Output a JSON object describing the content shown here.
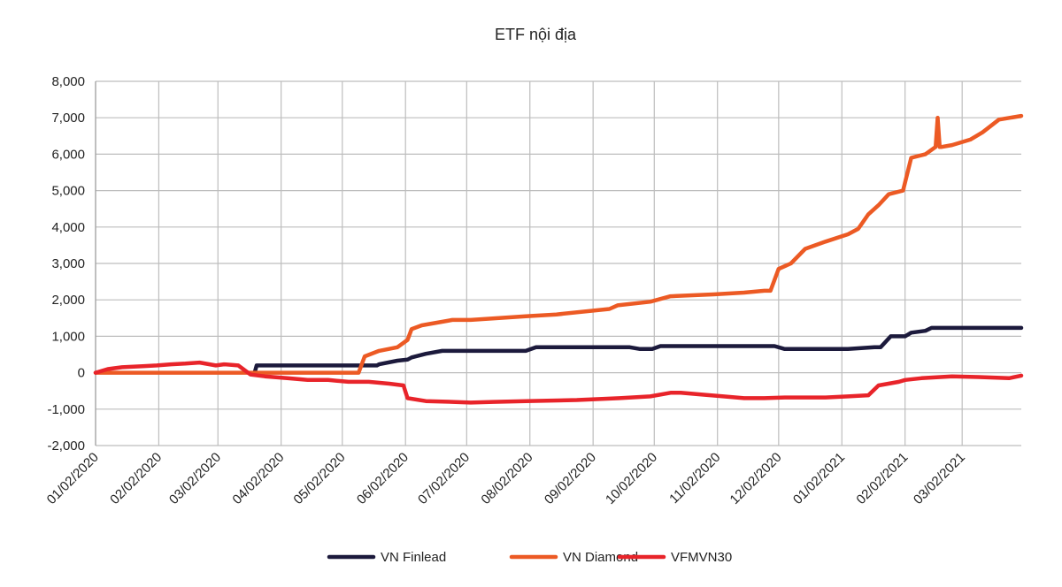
{
  "chart_data": {
    "type": "line",
    "title": "ETF nội địa",
    "xlabel": "",
    "ylabel": "",
    "ylim": [
      -2000,
      8000
    ],
    "yticks": [
      -2000,
      -1000,
      0,
      1000,
      2000,
      3000,
      4000,
      5000,
      6000,
      7000,
      8000
    ],
    "ytick_labels": [
      "-2,000",
      "-1,000",
      "0",
      "1,000",
      "2,000",
      "3,000",
      "4,000",
      "5,000",
      "6,000",
      "7,000",
      "8,000"
    ],
    "xlim": [
      "2020-01-02",
      "2021-03-31"
    ],
    "xticks": [
      "2020-01-02",
      "2020-02-02",
      "2020-03-02",
      "2020-04-02",
      "2020-05-02",
      "2020-06-02",
      "2020-07-02",
      "2020-08-02",
      "2020-09-02",
      "2020-10-02",
      "2020-11-02",
      "2020-12-02",
      "2021-01-02",
      "2021-02-02",
      "2021-03-02"
    ],
    "xtick_labels": [
      "01/02/2020",
      "02/02/2020",
      "03/02/2020",
      "04/02/2020",
      "05/02/2020",
      "06/02/2020",
      "07/02/2020",
      "08/02/2020",
      "09/02/2020",
      "10/02/2020",
      "11/02/2020",
      "12/02/2020",
      "01/02/2021",
      "02/02/2021",
      "03/02/2021"
    ],
    "grid": true,
    "legend_position": "bottom",
    "series": [
      {
        "name": "VN Finlead",
        "color": "#1c1a3c",
        "x": [
          "2020-03-20",
          "2020-03-21",
          "2020-05-19",
          "2020-05-20",
          "2020-05-29",
          "2020-06-03",
          "2020-06-05",
          "2020-06-12",
          "2020-06-20",
          "2020-07-31",
          "2020-08-05",
          "2020-09-20",
          "2020-09-25",
          "2020-10-01",
          "2020-10-05",
          "2020-11-30",
          "2020-12-05",
          "2021-01-05",
          "2021-01-18",
          "2021-01-21",
          "2021-01-26",
          "2021-02-02",
          "2021-02-05",
          "2021-02-12",
          "2021-02-15",
          "2021-03-31"
        ],
        "y": [
          0,
          200,
          200,
          230,
          330,
          360,
          420,
          520,
          600,
          600,
          700,
          700,
          650,
          650,
          730,
          730,
          650,
          650,
          700,
          700,
          1000,
          1000,
          1100,
          1150,
          1230,
          1230
        ]
      },
      {
        "name": "VN Diamond",
        "color": "#ec5a24",
        "x": [
          "2020-01-02",
          "2020-05-10",
          "2020-05-13",
          "2020-05-20",
          "2020-05-29",
          "2020-06-03",
          "2020-06-05",
          "2020-06-10",
          "2020-06-25",
          "2020-07-04",
          "2020-07-31",
          "2020-08-15",
          "2020-09-10",
          "2020-09-14",
          "2020-09-30",
          "2020-10-10",
          "2020-10-31",
          "2020-11-15",
          "2020-11-25",
          "2020-11-28",
          "2020-12-02",
          "2020-12-08",
          "2020-12-15",
          "2020-12-25",
          "2021-01-05",
          "2021-01-10",
          "2021-01-15",
          "2021-01-20",
          "2021-01-25",
          "2021-02-01",
          "2021-02-05",
          "2021-02-12",
          "2021-02-17",
          "2021-02-18",
          "2021-02-19",
          "2021-02-20",
          "2021-02-25",
          "2021-03-06",
          "2021-03-12",
          "2021-03-20",
          "2021-03-31"
        ],
        "y": [
          0,
          0,
          450,
          600,
          700,
          900,
          1200,
          1300,
          1450,
          1450,
          1550,
          1600,
          1750,
          1850,
          1950,
          2100,
          2150,
          2200,
          2250,
          2250,
          2850,
          3000,
          3400,
          3600,
          3800,
          3950,
          4350,
          4600,
          4900,
          5000,
          5900,
          6000,
          6200,
          7000,
          6200,
          6200,
          6250,
          6400,
          6600,
          6950,
          7050
        ]
      },
      {
        "name": "VFMVN30",
        "color": "#e8242a",
        "x": [
          "2020-01-02",
          "2020-01-08",
          "2020-01-15",
          "2020-01-25",
          "2020-02-01",
          "2020-02-08",
          "2020-02-15",
          "2020-02-22",
          "2020-03-01",
          "2020-03-05",
          "2020-03-12",
          "2020-03-18",
          "2020-03-25",
          "2020-04-05",
          "2020-04-15",
          "2020-04-25",
          "2020-05-05",
          "2020-05-15",
          "2020-05-25",
          "2020-06-01",
          "2020-06-03",
          "2020-06-12",
          "2020-06-25",
          "2020-07-04",
          "2020-07-15",
          "2020-07-31",
          "2020-08-25",
          "2020-09-15",
          "2020-09-30",
          "2020-10-10",
          "2020-10-15",
          "2020-10-25",
          "2020-11-05",
          "2020-11-15",
          "2020-11-25",
          "2020-12-05",
          "2020-12-25",
          "2021-01-05",
          "2021-01-15",
          "2021-01-20",
          "2021-01-30",
          "2021-02-02",
          "2021-02-10",
          "2021-02-25",
          "2021-03-10",
          "2021-03-25",
          "2021-03-31"
        ],
        "y": [
          0,
          100,
          150,
          180,
          200,
          230,
          250,
          280,
          200,
          230,
          200,
          -50,
          -100,
          -150,
          -200,
          -200,
          -250,
          -250,
          -300,
          -350,
          -700,
          -780,
          -800,
          -820,
          -800,
          -780,
          -750,
          -700,
          -650,
          -550,
          -550,
          -600,
          -650,
          -700,
          -700,
          -680,
          -680,
          -650,
          -620,
          -350,
          -250,
          -200,
          -150,
          -100,
          -120,
          -150,
          -80
        ]
      }
    ]
  }
}
